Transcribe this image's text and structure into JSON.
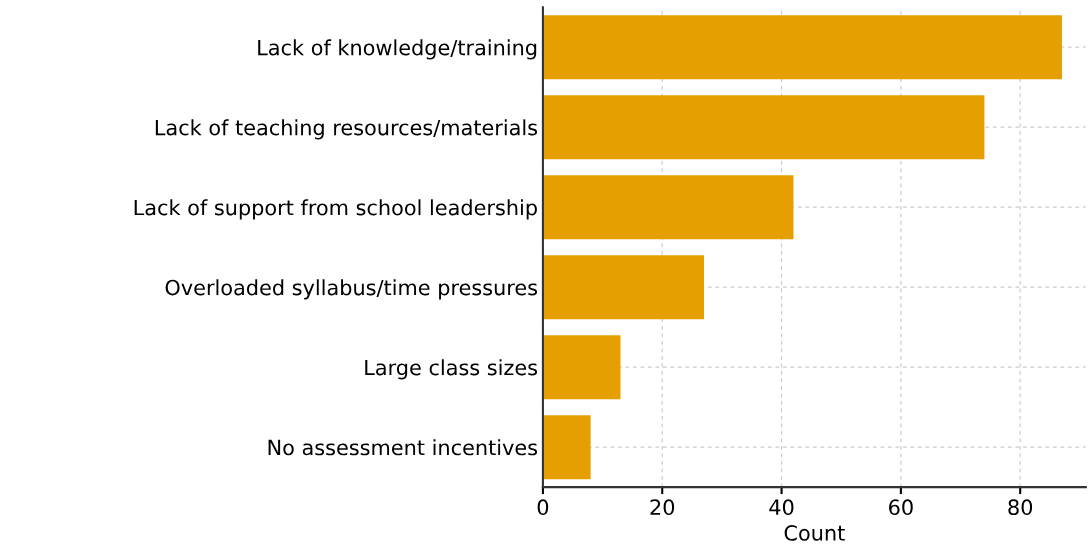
{
  "chart_data": {
    "type": "bar",
    "orientation": "horizontal",
    "xlabel": "Count",
    "categories": [
      "Lack of knowledge/training",
      "Lack of teaching resources/materials",
      "Lack of support from school leadership",
      "Overloaded syllabus/time pressures",
      "Large class sizes",
      "No assessment incentives"
    ],
    "values": [
      87,
      74,
      42,
      27,
      13,
      8
    ],
    "color": "#e69f00",
    "xlim": [
      0,
      91
    ],
    "xticks": [
      0,
      20,
      40,
      60,
      80
    ],
    "grid": true
  }
}
